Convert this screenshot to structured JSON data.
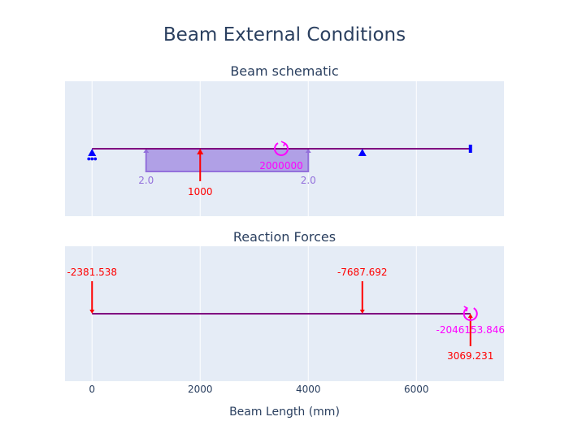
{
  "title": "Beam External Conditions",
  "xlabel": "Beam Length (mm)",
  "colors": {
    "beam": "#800080",
    "support": "#0000ff",
    "point_force": "#ff0000",
    "distributed_load": "#9370db",
    "distributed_fill": "#b0a0e6",
    "moment": "#ff00ff",
    "text": "#2a3f5f",
    "panel_bg": "#e5ecf6",
    "grid": "#ffffff"
  },
  "chart_data": [
    {
      "type": "beam-schematic",
      "subtitle": "Beam schematic",
      "xlim": [
        -500,
        7620
      ],
      "x_ticks": [
        0,
        2000,
        4000,
        6000
      ],
      "grid": true,
      "beam": {
        "start": 0,
        "end": 7000
      },
      "supports": [
        {
          "x": 0,
          "kind": "pin-roller"
        },
        {
          "x": 5000,
          "kind": "roller"
        },
        {
          "x": 7000,
          "kind": "fixed"
        }
      ],
      "distributed_load": {
        "x_start": 1000,
        "x_end": 4000,
        "start_label": "2.0",
        "end_label": "2.0",
        "direction": "up"
      },
      "point_loads": [
        {
          "x": 2000,
          "label": "1000",
          "direction": "up"
        }
      ],
      "moments": [
        {
          "x": 3500,
          "label": "2000000",
          "direction": "counterclockwise"
        }
      ]
    },
    {
      "type": "reaction-diagram",
      "subtitle": "Reaction Forces",
      "xlim": [
        -500,
        7620
      ],
      "x_ticks": [
        0,
        2000,
        4000,
        6000
      ],
      "grid": true,
      "beam": {
        "start": 0,
        "end": 7000
      },
      "reaction_forces": [
        {
          "x": 0,
          "label": "-2381.538",
          "direction": "down"
        },
        {
          "x": 5000,
          "label": "-7687.692",
          "direction": "down"
        },
        {
          "x": 7000,
          "label": "3069.231",
          "direction": "up"
        }
      ],
      "reaction_moments": [
        {
          "x": 7000,
          "label": "-2046153.846",
          "direction": "clockwise"
        }
      ]
    }
  ]
}
